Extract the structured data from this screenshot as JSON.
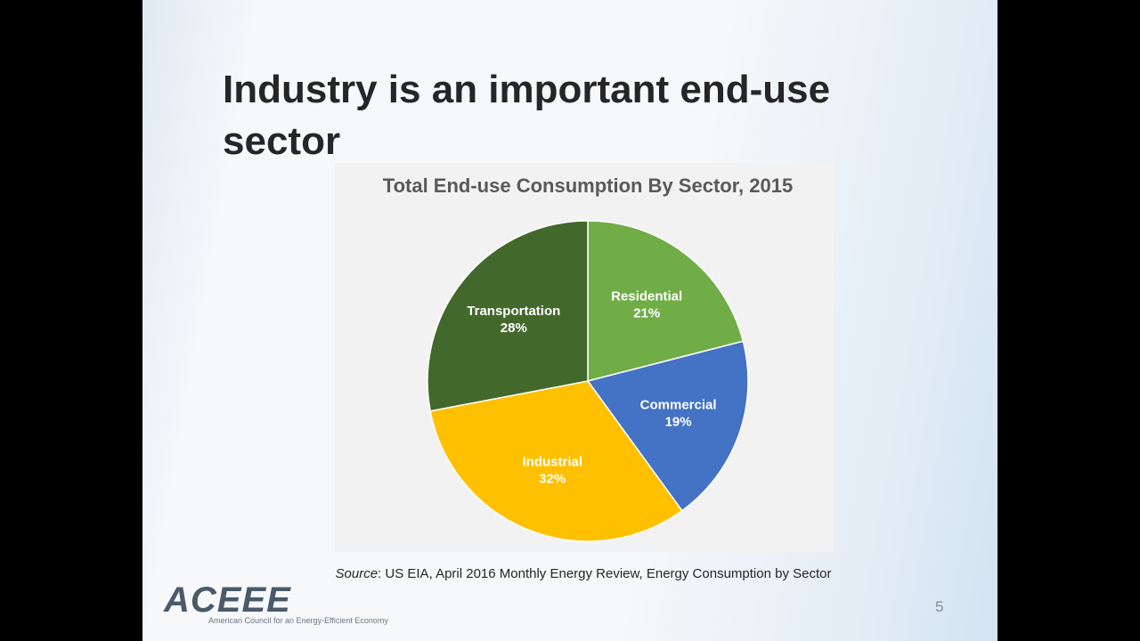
{
  "slide": {
    "title": "Industry is an important end-use sector",
    "source_label": "Source",
    "source_text": ": US EIA, April 2016 Monthly Energy Review, Energy Consumption by Sector",
    "logo": "ACEEE",
    "logo_tagline": "American Council for an Energy-Efficient Economy",
    "page_number": "5"
  },
  "chart_data": {
    "type": "pie",
    "title": "Total End-use Consumption By Sector, 2015",
    "categories": [
      "Residential",
      "Commercial",
      "Industrial",
      "Transportation"
    ],
    "values": [
      21,
      19,
      32,
      28
    ],
    "value_labels": [
      "21%",
      "19%",
      "32%",
      "28%"
    ],
    "colors": [
      "#70ad47",
      "#4472c4",
      "#ffc000",
      "#43682b"
    ]
  }
}
